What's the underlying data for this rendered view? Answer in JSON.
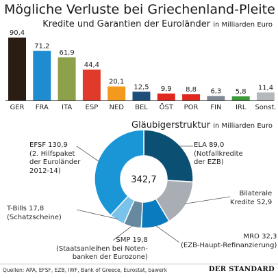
{
  "title": "Mögliche Verluste bei Griechenland-Pleite",
  "subtitle": "Kredite und Garantien der Euroländer",
  "subtitle_unit": "in Milliarden Euro",
  "chart_data": [
    {
      "type": "bar",
      "categories": [
        "GER",
        "FRA",
        "ITA",
        "ESP",
        "NED",
        "BEL",
        "ÖST",
        "POR",
        "FIN",
        "IRL",
        "Sonst."
      ],
      "values": [
        90.4,
        71.2,
        61.9,
        44.4,
        20.1,
        12.5,
        9.9,
        8.8,
        6.3,
        5.8,
        11.4
      ],
      "value_labels": [
        "90,4",
        "71,2",
        "61,9",
        "44,4",
        "20,1",
        "12,5",
        "9,9",
        "8,8",
        "6,3",
        "5,8",
        "11,4"
      ],
      "colors": [
        "#2b1d14",
        "#1f8bd0",
        "#8da04a",
        "#e03a2a",
        "#f39a1e",
        "#1d4e7a",
        "#e0281f",
        "#e0281f",
        "#7f8a96",
        "#3d9a3a",
        "#b5b9bd"
      ],
      "title": "Kredite und Garantien der Euroländer",
      "ylabel": "in Milliarden Euro",
      "ylim": [
        0,
        90.4
      ]
    },
    {
      "type": "pie",
      "title": "Gläubigerstruktur",
      "unit": "in Milliarden Euro",
      "total": "342,7",
      "slices": [
        {
          "name": "ELA",
          "value": 89.0,
          "label_value": "89,0",
          "label_lines": [
            "ELA 89,0",
            "(Notfallkredite",
            "der EZB)"
          ],
          "color": "#0b4f73"
        },
        {
          "name": "Bilaterale Kredite",
          "value": 52.9,
          "label_value": "52,9",
          "label_lines": [
            "Bilaterale",
            "Kredite 52,9"
          ],
          "color": "#a8aeb3"
        },
        {
          "name": "MRO",
          "value": 32.3,
          "label_value": "32,3",
          "label_lines": [
            "MRO 32,3",
            "(EZB-Haupt-Refinanzierung)"
          ],
          "color": "#0a7bbf"
        },
        {
          "name": "SMP",
          "value": 19.8,
          "label_value": "19,8",
          "label_lines": [
            "SMP 19,8",
            "(Staatsanleihen bei Noten-",
            "banken der Eurozone)"
          ],
          "color": "#66899f"
        },
        {
          "name": "T-Bills",
          "value": 17.8,
          "label_value": "17,8",
          "label_lines": [
            "T-Bills 17,8",
            "(Schatzscheine)"
          ],
          "color": "#79c2ea"
        },
        {
          "name": "EFSF",
          "value": 130.9,
          "label_value": "130,9",
          "label_lines": [
            "EFSF 130,9",
            "(2. Hilfspaket",
            "der Euroländer",
            "2012-14)"
          ],
          "color": "#1a96d6"
        }
      ]
    }
  ],
  "footer": {
    "sources": "Quellen: APA, EFSF, EZB, IWF, Bank of Greece, Eurostat, bawerk",
    "logo": "DER STANDARD"
  }
}
